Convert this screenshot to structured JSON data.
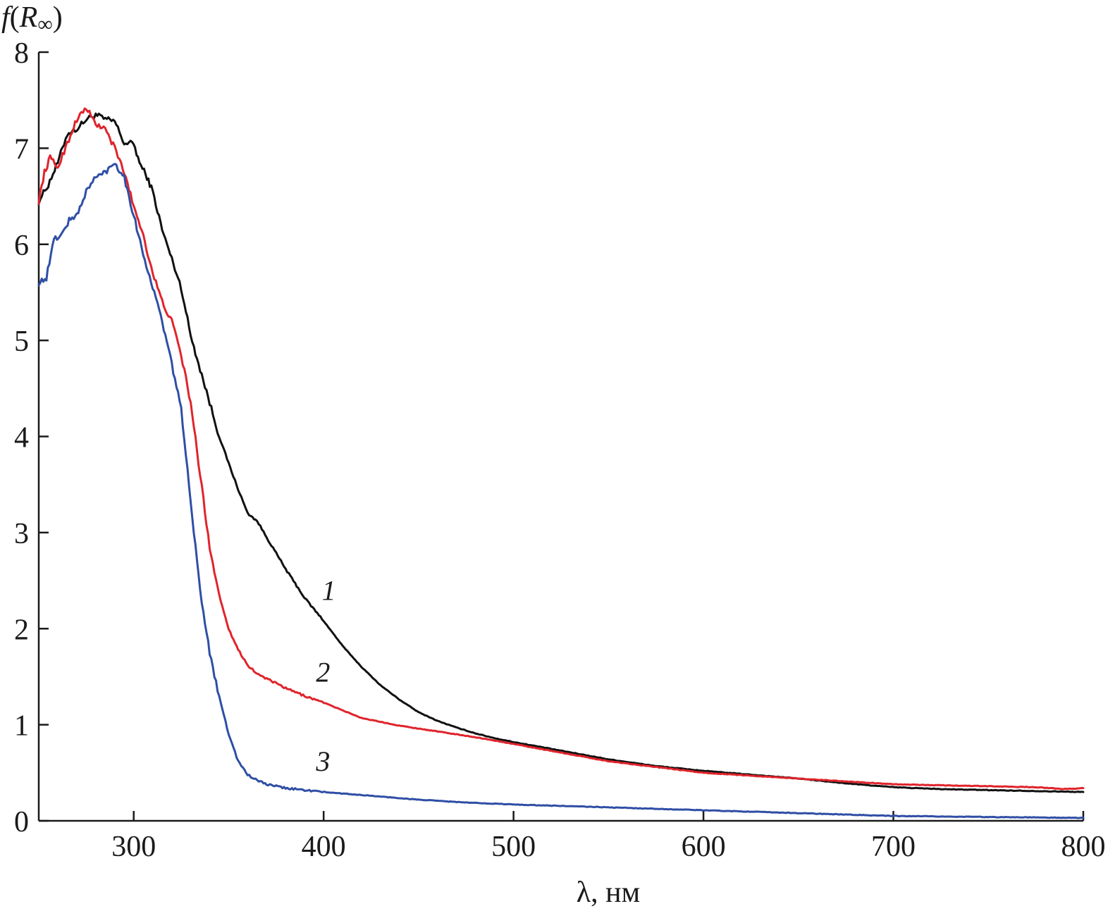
{
  "chart_data": {
    "type": "line",
    "ylabel": "f(R∞)",
    "ylabel_parts": {
      "italic": "f",
      "open": "(",
      "var": "R",
      "sub": "∞",
      "close": ")"
    },
    "xlabel": "λ, нм",
    "xlim": [
      250,
      800
    ],
    "ylim": [
      0,
      8
    ],
    "x_ticks": [
      300,
      400,
      500,
      600,
      700,
      800
    ],
    "y_ticks": [
      0,
      1,
      2,
      3,
      4,
      5,
      6,
      7,
      8
    ],
    "grid": false,
    "series": [
      {
        "name": "1",
        "color": "#111111",
        "label_at": [
          399,
          2.3
        ],
        "points": [
          [
            250,
            6.45
          ],
          [
            255,
            6.62
          ],
          [
            260,
            6.85
          ],
          [
            265,
            7.15
          ],
          [
            270,
            7.2
          ],
          [
            275,
            7.3
          ],
          [
            280,
            7.35
          ],
          [
            285,
            7.3
          ],
          [
            290,
            7.28
          ],
          [
            295,
            7.05
          ],
          [
            300,
            7.05
          ],
          [
            303,
            6.85
          ],
          [
            307,
            6.7
          ],
          [
            310,
            6.55
          ],
          [
            315,
            6.15
          ],
          [
            320,
            5.85
          ],
          [
            325,
            5.55
          ],
          [
            330,
            5.05
          ],
          [
            335,
            4.7
          ],
          [
            340,
            4.35
          ],
          [
            345,
            4.0
          ],
          [
            350,
            3.72
          ],
          [
            355,
            3.45
          ],
          [
            360,
            3.2
          ],
          [
            365,
            3.12
          ],
          [
            370,
            2.95
          ],
          [
            380,
            2.62
          ],
          [
            390,
            2.32
          ],
          [
            400,
            2.08
          ],
          [
            410,
            1.82
          ],
          [
            420,
            1.6
          ],
          [
            430,
            1.41
          ],
          [
            440,
            1.26
          ],
          [
            450,
            1.13
          ],
          [
            460,
            1.04
          ],
          [
            470,
            0.97
          ],
          [
            480,
            0.91
          ],
          [
            490,
            0.86
          ],
          [
            500,
            0.82
          ],
          [
            525,
            0.73
          ],
          [
            550,
            0.64
          ],
          [
            575,
            0.57
          ],
          [
            600,
            0.52
          ],
          [
            625,
            0.48
          ],
          [
            650,
            0.44
          ],
          [
            675,
            0.39
          ],
          [
            700,
            0.35
          ],
          [
            725,
            0.33
          ],
          [
            750,
            0.32
          ],
          [
            775,
            0.31
          ],
          [
            800,
            0.3
          ]
        ]
      },
      {
        "name": "2",
        "color": "#e0242c",
        "label_at": [
          396,
          1.45
        ],
        "points": [
          [
            250,
            6.45
          ],
          [
            253,
            6.75
          ],
          [
            256,
            6.9
          ],
          [
            260,
            6.8
          ],
          [
            265,
            7.05
          ],
          [
            270,
            7.3
          ],
          [
            275,
            7.42
          ],
          [
            280,
            7.25
          ],
          [
            285,
            7.2
          ],
          [
            290,
            7.0
          ],
          [
            295,
            6.75
          ],
          [
            300,
            6.4
          ],
          [
            305,
            6.1
          ],
          [
            310,
            5.7
          ],
          [
            315,
            5.4
          ],
          [
            320,
            5.2
          ],
          [
            325,
            4.85
          ],
          [
            330,
            4.35
          ],
          [
            335,
            3.6
          ],
          [
            340,
            2.85
          ],
          [
            345,
            2.35
          ],
          [
            350,
            2.0
          ],
          [
            355,
            1.78
          ],
          [
            360,
            1.62
          ],
          [
            365,
            1.53
          ],
          [
            370,
            1.48
          ],
          [
            380,
            1.38
          ],
          [
            390,
            1.3
          ],
          [
            400,
            1.23
          ],
          [
            410,
            1.15
          ],
          [
            420,
            1.07
          ],
          [
            440,
            0.99
          ],
          [
            460,
            0.93
          ],
          [
            480,
            0.87
          ],
          [
            500,
            0.8
          ],
          [
            525,
            0.71
          ],
          [
            550,
            0.62
          ],
          [
            575,
            0.56
          ],
          [
            600,
            0.5
          ],
          [
            625,
            0.47
          ],
          [
            650,
            0.44
          ],
          [
            675,
            0.41
          ],
          [
            700,
            0.38
          ],
          [
            725,
            0.37
          ],
          [
            750,
            0.36
          ],
          [
            775,
            0.35
          ],
          [
            790,
            0.33
          ],
          [
            800,
            0.34
          ]
        ]
      },
      {
        "name": "3",
        "color": "#2f4ea5",
        "label_at": [
          396,
          0.52
        ],
        "points": [
          [
            250,
            5.6
          ],
          [
            254,
            5.65
          ],
          [
            258,
            6.05
          ],
          [
            262,
            6.1
          ],
          [
            266,
            6.25
          ],
          [
            270,
            6.3
          ],
          [
            275,
            6.55
          ],
          [
            280,
            6.7
          ],
          [
            285,
            6.75
          ],
          [
            290,
            6.85
          ],
          [
            295,
            6.7
          ],
          [
            300,
            6.3
          ],
          [
            305,
            5.9
          ],
          [
            310,
            5.55
          ],
          [
            315,
            5.2
          ],
          [
            320,
            4.75
          ],
          [
            325,
            4.3
          ],
          [
            330,
            3.3
          ],
          [
            335,
            2.4
          ],
          [
            340,
            1.75
          ],
          [
            345,
            1.3
          ],
          [
            350,
            0.9
          ],
          [
            355,
            0.62
          ],
          [
            360,
            0.48
          ],
          [
            365,
            0.42
          ],
          [
            370,
            0.38
          ],
          [
            380,
            0.34
          ],
          [
            390,
            0.32
          ],
          [
            400,
            0.3
          ],
          [
            425,
            0.26
          ],
          [
            450,
            0.22
          ],
          [
            475,
            0.19
          ],
          [
            500,
            0.17
          ],
          [
            550,
            0.14
          ],
          [
            600,
            0.11
          ],
          [
            650,
            0.08
          ],
          [
            700,
            0.05
          ],
          [
            750,
            0.04
          ],
          [
            800,
            0.03
          ]
        ]
      }
    ]
  }
}
